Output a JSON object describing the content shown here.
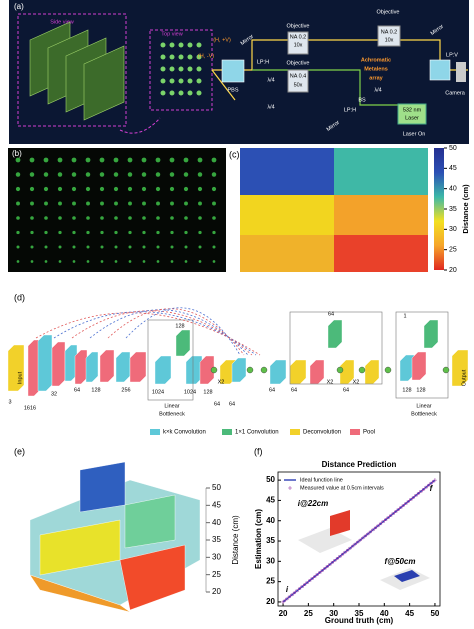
{
  "panel_a": {
    "label": "(a)",
    "texts": [
      "Side view",
      "Top view",
      "(H, +V)",
      "(H, -V)",
      "Mirror",
      "Objective",
      "NA 0.2",
      "10x",
      "Objective",
      "NA 0.2",
      "10x",
      "Mirror",
      "LP:H",
      "λ/4",
      "Objective",
      "NA 0.4",
      "50x",
      "Achromatic",
      "Metalens",
      "array",
      "BS",
      "λ/4",
      "LP:V",
      "PBS",
      "λ/4",
      "LP:H",
      "Camera",
      "Mirror",
      "532 nm",
      "Laser",
      "Laser On"
    ]
  },
  "panel_b": {
    "label": "(b)"
  },
  "panel_c": {
    "label": "(c)",
    "colorbar": {
      "clim": [
        20,
        50
      ],
      "ticks": [
        20,
        25,
        30,
        35,
        40,
        45,
        50
      ],
      "label": "Distance (cm)"
    }
  },
  "panel_d": {
    "label": "(d)",
    "texts": [
      "Input",
      "3",
      "1616",
      "32",
      "64",
      "128",
      "256",
      "1024",
      "1024",
      "128",
      "128",
      "Linear",
      "Bottleneck",
      "64",
      "64",
      "X2",
      "64",
      "64",
      "64",
      "X2",
      "X2",
      "64",
      "128",
      "128",
      "1",
      "Output",
      "Linear",
      "Bottleneck"
    ],
    "legend": [
      "k×k Convolution",
      "1×1 Convolution",
      "Deconvolution",
      "Pool"
    ]
  },
  "panel_e": {
    "label": "(e)",
    "zlim": [
      20,
      50
    ],
    "zticks": [
      20,
      25,
      30,
      35,
      40,
      45,
      50
    ],
    "zlabel": "Distance (cm)"
  },
  "chart_data": {
    "type": "line",
    "label": "(f)",
    "title": "Distance Prediction",
    "x_label": "Ground truth (cm)",
    "y_label": "Estimation (cm)",
    "x": [
      20,
      20.5,
      21,
      21.5,
      22,
      22.5,
      23,
      23.5,
      24,
      24.5,
      25,
      25.5,
      26,
      26.5,
      27,
      27.5,
      28,
      28.5,
      29,
      29.5,
      30,
      30.5,
      31,
      31.5,
      32,
      32.5,
      33,
      33.5,
      34,
      34.5,
      35,
      35.5,
      36,
      36.5,
      37,
      37.5,
      38,
      38.5,
      39,
      39.5,
      40,
      40.5,
      41,
      41.5,
      42,
      42.5,
      43,
      43.5,
      44,
      44.5,
      45,
      45.5,
      46,
      46.5,
      47,
      47.5,
      48,
      48.5,
      49,
      49.5,
      50
    ],
    "series": [
      {
        "name": "Ideal function line",
        "color": "#2d3fb5",
        "marker": "none",
        "values": [
          20,
          20.5,
          21,
          21.5,
          22,
          22.5,
          23,
          23.5,
          24,
          24.5,
          25,
          25.5,
          26,
          26.5,
          27,
          27.5,
          28,
          28.5,
          29,
          29.5,
          30,
          30.5,
          31,
          31.5,
          32,
          32.5,
          33,
          33.5,
          34,
          34.5,
          35,
          35.5,
          36,
          36.5,
          37,
          37.5,
          38,
          38.5,
          39,
          39.5,
          40,
          40.5,
          41,
          41.5,
          42,
          42.5,
          43,
          43.5,
          44,
          44.5,
          45,
          45.5,
          46,
          46.5,
          47,
          47.5,
          48,
          48.5,
          49,
          49.5,
          50
        ]
      },
      {
        "name": "Measured value at 0.5cm intervals",
        "color": "#9b3aa8",
        "marker": "+",
        "values": [
          20,
          20.5,
          21,
          21.5,
          22,
          22.5,
          23,
          23.5,
          24,
          24.5,
          25,
          25.5,
          26,
          26.5,
          27,
          27.5,
          28,
          28.5,
          29,
          29.5,
          30,
          30.5,
          31,
          31.5,
          32,
          32.5,
          33,
          33.5,
          34,
          34.5,
          35,
          35.5,
          36,
          36.5,
          37,
          37.5,
          38,
          38.5,
          39,
          39.5,
          40,
          40.5,
          41,
          41.5,
          42,
          42.5,
          43,
          43.5,
          44,
          44.5,
          45,
          45.5,
          46,
          46.5,
          47,
          47.5,
          48,
          48.5,
          49,
          49.5,
          50
        ]
      }
    ],
    "xlim": [
      19,
      51
    ],
    "ylim": [
      19,
      52
    ],
    "xticks": [
      20,
      25,
      30,
      35,
      40,
      45,
      50
    ],
    "yticks": [
      20,
      25,
      30,
      35,
      40,
      45,
      50
    ],
    "annotations": [
      "i@22cm",
      "f@50cm",
      "i",
      "f"
    ]
  }
}
